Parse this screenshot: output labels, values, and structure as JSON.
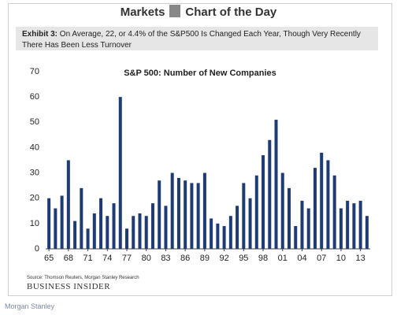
{
  "header": {
    "left": "Markets",
    "right": "Chart of the Day"
  },
  "exhibit": {
    "label": "Exhibit 3:",
    "text": "On Average, 22, or 4.4% of the S&P500 Is Changed Each Year, Though Very Recently There Has Been Less Turnover"
  },
  "chart_data": {
    "type": "bar",
    "title": "S&P 500: Number of New Companies",
    "categories": [
      "65",
      null,
      null,
      "68",
      null,
      null,
      "71",
      null,
      null,
      "74",
      null,
      null,
      "77",
      null,
      null,
      "80",
      null,
      null,
      "83",
      null,
      null,
      "86",
      null,
      null,
      "89",
      null,
      null,
      "92",
      null,
      null,
      "95",
      null,
      null,
      "98",
      null,
      null,
      "01",
      null,
      null,
      "04",
      null,
      null,
      "07",
      null,
      null,
      "10",
      null,
      null,
      "13",
      null
    ],
    "values": [
      20,
      16,
      21,
      35,
      11,
      24,
      8,
      14,
      20,
      13,
      18,
      60,
      8,
      13,
      14,
      13,
      18,
      27,
      17,
      30,
      28,
      27,
      26,
      26,
      30,
      12,
      10,
      9,
      13,
      17,
      26,
      20,
      29,
      37,
      43,
      51,
      30,
      24,
      9,
      19,
      16,
      32,
      38,
      35,
      29,
      16,
      19,
      18,
      19,
      13
    ],
    "color": "#1f3b73",
    "ylim": [
      0,
      70
    ],
    "yticks": [
      0,
      10,
      20,
      30,
      40,
      50,
      60,
      70
    ],
    "grid": false
  },
  "source": "Source: Thomson Reuters, Morgan Stanley Research",
  "brand": "BUSINESS INSIDER",
  "footer": "Morgan Stanley"
}
